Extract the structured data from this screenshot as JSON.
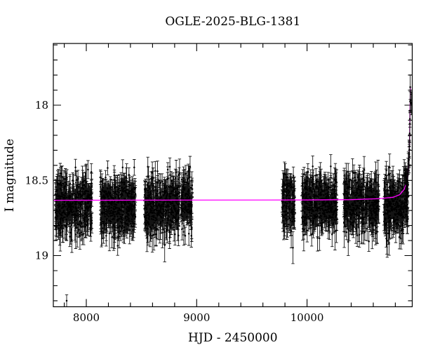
{
  "chart_data": {
    "type": "scatter",
    "title": "OGLE-2025-BLG-1381",
    "xlabel": "HJD - 2450000",
    "ylabel": "I magnitude",
    "xlim": [
      7701,
      10953
    ],
    "ylim": [
      17.59,
      19.34
    ],
    "y_axis_inverted": true,
    "grid": false,
    "legend": "none",
    "x_major_ticks": [
      8000,
      9000,
      10000
    ],
    "x_major_tick_labels": [
      "8000",
      "9000",
      "10000"
    ],
    "x_minor_step": 200,
    "y_major_ticks": [
      18,
      18.5,
      19
    ],
    "y_major_tick_labels": [
      "18",
      "18.5",
      "19"
    ],
    "y_minor_step": 0.1,
    "marker_color": "#000000",
    "errorbar_color": "#000000",
    "model_color": "#ff00ff",
    "frame_color": "#000000",
    "baseline_mag": 18.63,
    "seasons": [
      {
        "t_start": 7720,
        "t_end": 8051,
        "n": 420,
        "mag_mean": 18.665,
        "mag_sigma": 0.093
      },
      {
        "t_start": 8127,
        "t_end": 8445,
        "n": 420,
        "mag_mean": 18.665,
        "mag_sigma": 0.093
      },
      {
        "t_start": 8528,
        "t_end": 8845,
        "n": 400,
        "mag_mean": 18.66,
        "mag_sigma": 0.093
      },
      {
        "t_start": 8858,
        "t_end": 8960,
        "n": 135,
        "mag_mean": 18.63,
        "mag_sigma": 0.082
      },
      {
        "t_start": 9774,
        "t_end": 9888,
        "n": 135,
        "mag_mean": 18.65,
        "mag_sigma": 0.09
      },
      {
        "t_start": 9952,
        "t_end": 10270,
        "n": 400,
        "mag_mean": 18.65,
        "mag_sigma": 0.09
      },
      {
        "t_start": 10333,
        "t_end": 10650,
        "n": 400,
        "mag_mean": 18.65,
        "mag_sigma": 0.09
      },
      {
        "t_start": 10696,
        "t_end": 10915,
        "n": 300,
        "mag_mean": 18.655,
        "mag_sigma": 0.09
      }
    ],
    "outliers": [
      {
        "t": 7822,
        "mag": 19.3,
        "err": 0.04
      }
    ],
    "event_rise": {
      "t_start": 10893,
      "t_end": 10950,
      "n": 32,
      "top_mag": 17.95,
      "scatter": 0.035
    },
    "model_curve": [
      [
        7701,
        18.632
      ],
      [
        10000,
        18.63
      ],
      [
        10400,
        18.628
      ],
      [
        10650,
        18.622
      ],
      [
        10780,
        18.612
      ],
      [
        10840,
        18.595
      ],
      [
        10880,
        18.56
      ],
      [
        10900,
        18.52
      ],
      [
        10912,
        18.47
      ],
      [
        10920,
        18.4
      ],
      [
        10926,
        18.3
      ],
      [
        10930,
        18.17
      ],
      [
        10933,
        18.02
      ],
      [
        10935,
        17.92
      ],
      [
        10936,
        17.88
      ]
    ]
  }
}
